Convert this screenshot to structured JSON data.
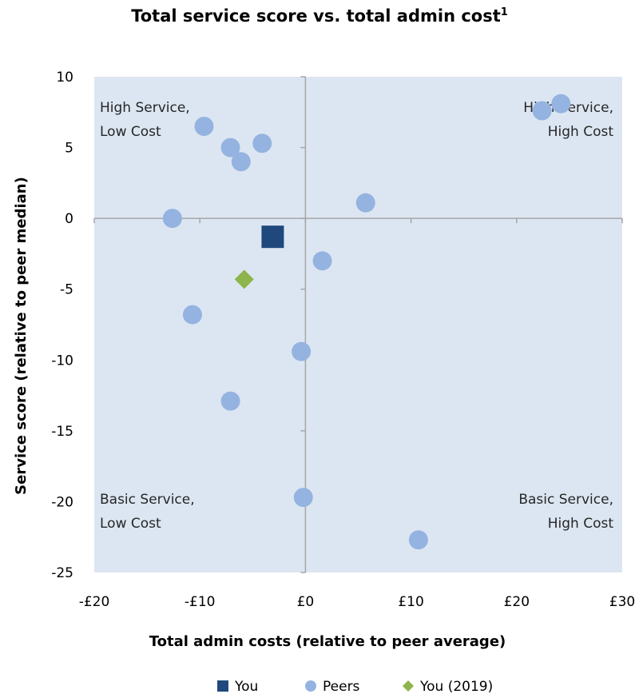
{
  "chart_data": {
    "type": "scatter",
    "title": "Total service score vs. total admin cost",
    "title_superscript": "1",
    "xlabel": "Total admin costs (relative to peer average)",
    "ylabel": "Service score (relative to peer median)",
    "xlim": [
      -20,
      30
    ],
    "ylim": [
      -25,
      10
    ],
    "x_ticks": [
      -20,
      -10,
      0,
      10,
      20,
      30
    ],
    "x_tick_labels": [
      "-£20",
      "-£10",
      "£0",
      "£10",
      "£20",
      "£30"
    ],
    "y_ticks": [
      10,
      5,
      0,
      -5,
      -10,
      -15,
      -20,
      -25
    ],
    "y_tick_labels": [
      "10",
      "5",
      "0",
      "-5",
      "-10",
      "-15",
      "-20",
      "-25"
    ],
    "grid": false,
    "legend_position": "bottom",
    "plot_background": "#dce6f2",
    "quadrant_labels": {
      "top_left": [
        "High Service,",
        "Low Cost"
      ],
      "top_right": [
        "High Service,",
        "High Cost"
      ],
      "bottom_left": [
        "Basic Service,",
        "Low Cost"
      ],
      "bottom_right": [
        "Basic Service,",
        "High Cost"
      ]
    },
    "series": [
      {
        "name": "You",
        "marker": "square",
        "color": "#1f497d",
        "points": [
          [
            -3.1,
            -1.3
          ]
        ]
      },
      {
        "name": "Peers",
        "marker": "circle",
        "color": "#95b3e0",
        "points": [
          [
            -12.6,
            0.0
          ],
          [
            -9.6,
            6.5
          ],
          [
            -7.1,
            5.0
          ],
          [
            -6.1,
            4.0
          ],
          [
            -4.1,
            5.3
          ],
          [
            -10.7,
            -6.8
          ],
          [
            -7.1,
            -12.9
          ],
          [
            -0.4,
            -9.4
          ],
          [
            -0.2,
            -19.7
          ],
          [
            1.6,
            -3.0
          ],
          [
            5.7,
            1.1
          ],
          [
            10.7,
            -22.7
          ],
          [
            22.4,
            7.6
          ],
          [
            24.2,
            8.1
          ]
        ]
      },
      {
        "name": "You (2019)",
        "marker": "diamond",
        "color": "#8db54b",
        "points": [
          [
            -5.8,
            -4.3
          ]
        ]
      }
    ]
  }
}
